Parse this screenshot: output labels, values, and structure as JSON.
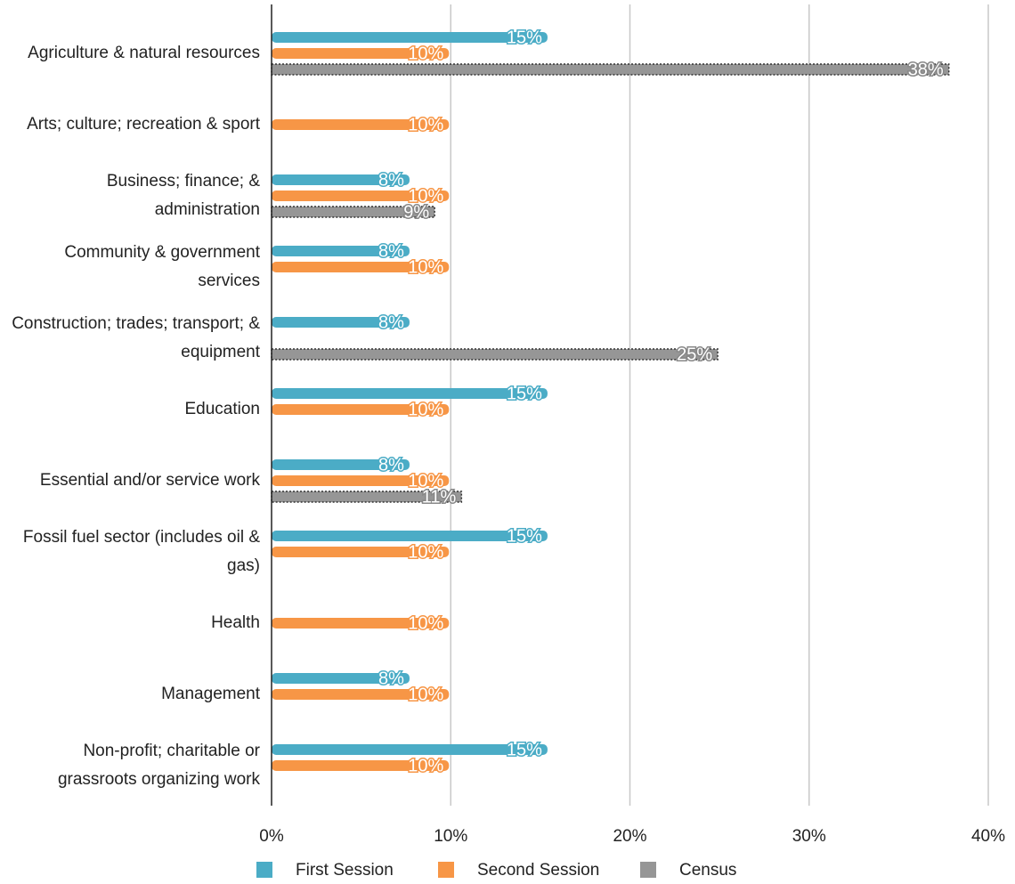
{
  "chart_data": {
    "type": "hbar",
    "categories": [
      "Agriculture & natural resources",
      "Arts; culture; recreation & sport",
      "Business; finance; & administration",
      "Community & government services",
      "Construction; trades; transport; & equipment",
      "Education",
      "Essential and/or service work",
      "Fossil fuel sector (includes oil & gas)",
      "Health",
      "Management",
      "Non-profit; charitable or grassroots organizing work"
    ],
    "series": [
      {
        "name": "First Session",
        "color": "#4bacc6",
        "values": [
          15.4,
          null,
          7.7,
          7.7,
          7.7,
          15.4,
          7.7,
          15.4,
          null,
          7.7,
          15.4
        ],
        "value_labels": [
          "15%",
          null,
          "8%",
          "8%",
          "8%",
          "15%",
          "8%",
          "15%",
          null,
          "8%",
          "15%"
        ]
      },
      {
        "name": "Second Session",
        "color": "#f79646",
        "values": [
          9.9,
          9.9,
          9.9,
          9.9,
          null,
          9.9,
          9.9,
          9.9,
          9.9,
          9.9,
          9.9
        ],
        "value_labels": [
          "10%",
          "10%",
          "10%",
          "10%",
          null,
          "10%",
          "10%",
          "10%",
          "10%",
          "10%",
          "10%"
        ]
      },
      {
        "name": "Census",
        "color": "#969696",
        "values": [
          37.8,
          null,
          9.1,
          null,
          24.9,
          null,
          10.6,
          null,
          null,
          null,
          null
        ],
        "value_labels": [
          "38%",
          null,
          "9%",
          null,
          "25%",
          null,
          "11%",
          null,
          null,
          null,
          null
        ]
      }
    ],
    "xlim": [
      0,
      40
    ],
    "xticks": [
      {
        "value": 0,
        "label": "0%"
      },
      {
        "value": 10,
        "label": "10%"
      },
      {
        "value": 20,
        "label": "20%"
      },
      {
        "value": 30,
        "label": "30%"
      },
      {
        "value": 40,
        "label": "40%"
      }
    ],
    "grid": true
  }
}
